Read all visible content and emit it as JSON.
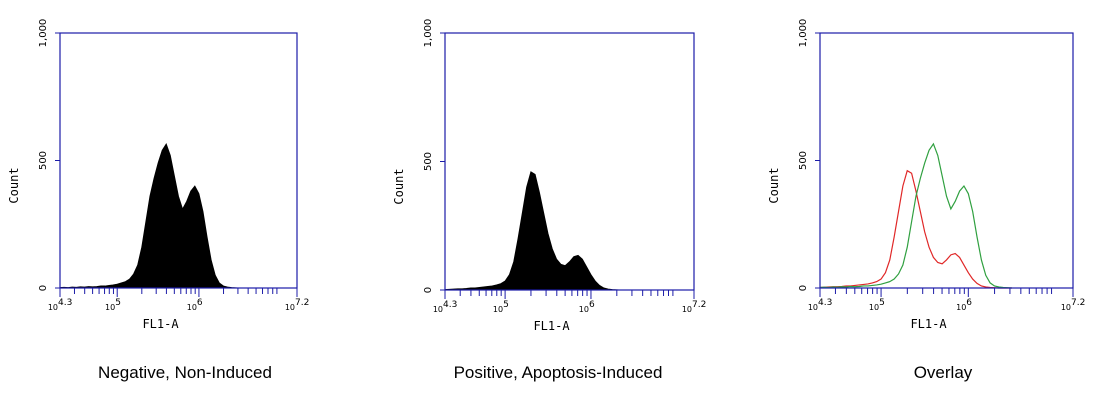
{
  "chart_data": [
    {
      "type": "area",
      "title": "Negative, Non-Induced",
      "xlabel": "FL1-A",
      "ylabel": "Count",
      "color": "#000000",
      "log_x": true,
      "xlim": [
        19953,
        15848932
      ],
      "xticks": [
        {
          "value": 19953,
          "label": "10",
          "sup": "4.3"
        },
        {
          "value": 100000,
          "label": "10",
          "sup": "5"
        },
        {
          "value": 1000000,
          "label": "10",
          "sup": "6"
        },
        {
          "value": 15848932,
          "label": "10",
          "sup": "7.2"
        }
      ],
      "xminorticks": [
        30000,
        40000,
        50000,
        60000,
        70000,
        80000,
        90000,
        200000,
        300000,
        400000,
        500000,
        600000,
        700000,
        800000,
        900000,
        2000000,
        3000000,
        4000000,
        5000000,
        6000000,
        7000000,
        8000000,
        9000000
      ],
      "ylim": [
        0,
        1000
      ],
      "yticks": [
        0,
        500,
        {
          "value": 1000,
          "label": "1,000"
        }
      ],
      "x": [
        19953,
        22387,
        25119,
        28184,
        31623,
        35481,
        39811,
        44668,
        50119,
        56234,
        63096,
        70795,
        79433,
        89125,
        100000,
        112202,
        125893,
        141254,
        158489,
        177828,
        199526,
        223872,
        251189,
        281838,
        316228,
        354813,
        398107,
        446684,
        501187,
        562341,
        630957,
        707946,
        794328,
        891251,
        1000000,
        1122018,
        1258925,
        1412538,
        1584893,
        1778279,
        1995262,
        2238721,
        2511886,
        2818383,
        3162278
      ],
      "values": [
        2,
        3,
        2,
        4,
        3,
        5,
        4,
        6,
        5,
        6,
        8,
        8,
        10,
        12,
        15,
        20,
        25,
        35,
        55,
        90,
        160,
        260,
        360,
        430,
        490,
        540,
        565,
        520,
        440,
        360,
        310,
        340,
        380,
        400,
        370,
        300,
        200,
        110,
        50,
        20,
        8,
        4,
        2,
        1,
        0
      ]
    },
    {
      "type": "area",
      "title": "Positive, Apoptosis-Induced",
      "xlabel": "FL1-A",
      "ylabel": "Count",
      "color": "#000000",
      "log_x": true,
      "xlim": [
        19953,
        15848932
      ],
      "xticks": [
        {
          "value": 19953,
          "label": "10",
          "sup": "4.3"
        },
        {
          "value": 100000,
          "label": "10",
          "sup": "5"
        },
        {
          "value": 1000000,
          "label": "10",
          "sup": "6"
        },
        {
          "value": 15848932,
          "label": "10",
          "sup": "7.2"
        }
      ],
      "xminorticks": [
        30000,
        40000,
        50000,
        60000,
        70000,
        80000,
        90000,
        200000,
        300000,
        400000,
        500000,
        600000,
        700000,
        800000,
        900000,
        2000000,
        3000000,
        4000000,
        5000000,
        6000000,
        7000000,
        8000000,
        9000000
      ],
      "ylim": [
        0,
        1000
      ],
      "yticks": [
        0,
        500,
        {
          "value": 1000,
          "label": "1,000"
        }
      ],
      "x": [
        19953,
        22387,
        25119,
        28184,
        31623,
        35481,
        39811,
        44668,
        50119,
        56234,
        63096,
        70795,
        79433,
        89125,
        100000,
        112202,
        125893,
        141254,
        158489,
        177828,
        199526,
        223872,
        251189,
        281838,
        316228,
        354813,
        398107,
        446684,
        501187,
        562341,
        630957,
        707946,
        794328,
        891251,
        1000000,
        1122018,
        1258925,
        1412538,
        1584893,
        1778279,
        1995262,
        2238721,
        2511886,
        2818383,
        3162278
      ],
      "values": [
        2,
        3,
        4,
        5,
        5,
        6,
        8,
        8,
        10,
        12,
        14,
        16,
        20,
        25,
        35,
        60,
        110,
        200,
        300,
        400,
        460,
        450,
        380,
        300,
        220,
        160,
        120,
        100,
        95,
        110,
        130,
        135,
        120,
        90,
        60,
        35,
        18,
        8,
        4,
        2,
        1,
        0,
        0,
        0,
        0
      ]
    },
    {
      "type": "line",
      "title": "Overlay",
      "xlabel": "FL1-A",
      "ylabel": "Count",
      "log_x": true,
      "xlim": [
        19953,
        15848932
      ],
      "xticks": [
        {
          "value": 19953,
          "label": "10",
          "sup": "4.3"
        },
        {
          "value": 100000,
          "label": "10",
          "sup": "5"
        },
        {
          "value": 1000000,
          "label": "10",
          "sup": "6"
        },
        {
          "value": 15848932,
          "label": "10",
          "sup": "7.2"
        }
      ],
      "xminorticks": [
        30000,
        40000,
        50000,
        60000,
        70000,
        80000,
        90000,
        200000,
        300000,
        400000,
        500000,
        600000,
        700000,
        800000,
        900000,
        2000000,
        3000000,
        4000000,
        5000000,
        6000000,
        7000000,
        8000000,
        9000000
      ],
      "ylim": [
        0,
        1000
      ],
      "yticks": [
        0,
        500,
        {
          "value": 1000,
          "label": "1,000"
        }
      ],
      "x": [
        19953,
        22387,
        25119,
        28184,
        31623,
        35481,
        39811,
        44668,
        50119,
        56234,
        63096,
        70795,
        79433,
        89125,
        100000,
        112202,
        125893,
        141254,
        158489,
        177828,
        199526,
        223872,
        251189,
        281838,
        316228,
        354813,
        398107,
        446684,
        501187,
        562341,
        630957,
        707946,
        794328,
        891251,
        1000000,
        1122018,
        1258925,
        1412538,
        1584893,
        1778279,
        1995262,
        2238721,
        2511886,
        2818383,
        3162278
      ],
      "series": [
        {
          "color": "#e02828",
          "values": [
            2,
            3,
            4,
            5,
            5,
            6,
            8,
            8,
            10,
            12,
            14,
            16,
            20,
            25,
            35,
            60,
            110,
            200,
            300,
            400,
            460,
            450,
            380,
            300,
            220,
            160,
            120,
            100,
            95,
            110,
            130,
            135,
            120,
            90,
            60,
            35,
            18,
            8,
            4,
            2,
            1,
            0,
            0,
            0,
            0
          ]
        },
        {
          "color": "#30a040",
          "values": [
            2,
            3,
            2,
            4,
            3,
            5,
            4,
            6,
            5,
            6,
            8,
            8,
            10,
            12,
            15,
            20,
            25,
            35,
            55,
            90,
            160,
            260,
            360,
            430,
            490,
            540,
            565,
            520,
            440,
            360,
            310,
            340,
            380,
            400,
            370,
            300,
            200,
            110,
            50,
            20,
            8,
            4,
            2,
            1,
            0
          ]
        }
      ]
    }
  ]
}
